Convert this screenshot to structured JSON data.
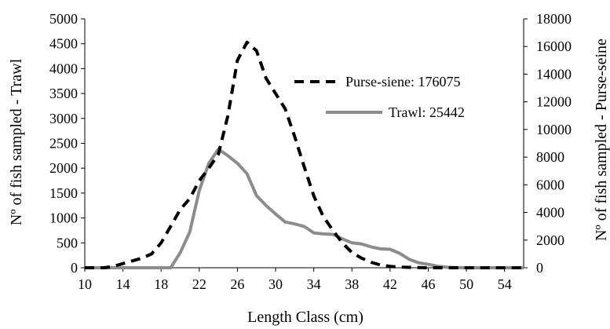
{
  "chart_data": {
    "type": "line",
    "title": "",
    "xlabel": "Length Class (cm)",
    "ylabel_left": "Nº of fish sampled - Trawl",
    "ylabel_right": "Nº of fish sampled - Purse-seine",
    "xlim": [
      10,
      56
    ],
    "ylim_left": [
      0,
      5000
    ],
    "ylim_right": [
      0,
      18000
    ],
    "x_ticks": [
      "10",
      "14",
      "18",
      "22",
      "26",
      "30",
      "34",
      "38",
      "42",
      "46",
      "50",
      "54"
    ],
    "y_ticks_left": [
      "0",
      "500",
      "1000",
      "1500",
      "2000",
      "2500",
      "3000",
      "3500",
      "4000",
      "4500",
      "5000"
    ],
    "y_ticks_right": [
      "0",
      "2000",
      "4000",
      "6000",
      "8000",
      "10000",
      "12000",
      "14000",
      "16000",
      "18000"
    ],
    "grid": false,
    "legend_position": "top-right",
    "series": [
      {
        "name": "Purse-siene: 176075",
        "axis": "right",
        "style": "dashed",
        "color": "#000000",
        "x": [
          10,
          11,
          12,
          13,
          14,
          15,
          16,
          17,
          18,
          19,
          20,
          21,
          22,
          23,
          24,
          25,
          26,
          27,
          28,
          29,
          30,
          31,
          32,
          33,
          34,
          35,
          36,
          37,
          38,
          39,
          40,
          41,
          42,
          43,
          44,
          45,
          46,
          47,
          48,
          49,
          50,
          51,
          52,
          53,
          54,
          55,
          56
        ],
        "values": [
          0,
          0,
          0,
          100,
          300,
          500,
          700,
          1000,
          1800,
          3000,
          4200,
          5000,
          6300,
          7200,
          8200,
          11000,
          15000,
          16300,
          15700,
          13700,
          12600,
          11500,
          9500,
          7300,
          5200,
          3700,
          2700,
          1800,
          1100,
          700,
          400,
          200,
          100,
          50,
          30,
          10,
          0,
          0,
          0,
          0,
          0,
          0,
          0,
          0,
          0,
          0,
          0
        ]
      },
      {
        "name": "Trawl: 25442",
        "axis": "left",
        "style": "solid",
        "color": "#8c8c8c",
        "x": [
          10,
          11,
          12,
          13,
          14,
          15,
          16,
          17,
          18,
          19,
          20,
          21,
          22,
          23,
          24,
          25,
          26,
          27,
          28,
          29,
          30,
          31,
          32,
          33,
          34,
          35,
          36,
          37,
          38,
          39,
          40,
          41,
          42,
          43,
          44,
          45,
          46,
          47,
          48,
          49,
          50,
          51,
          52,
          53,
          54,
          55,
          56
        ],
        "values": [
          0,
          0,
          0,
          0,
          0,
          0,
          0,
          0,
          0,
          0,
          300,
          720,
          1550,
          2100,
          2380,
          2250,
          2100,
          1890,
          1450,
          1250,
          1080,
          920,
          880,
          830,
          700,
          680,
          670,
          580,
          500,
          480,
          420,
          380,
          370,
          290,
          170,
          100,
          70,
          30,
          10,
          5,
          0,
          0,
          0,
          0,
          0,
          0,
          0
        ]
      }
    ]
  }
}
